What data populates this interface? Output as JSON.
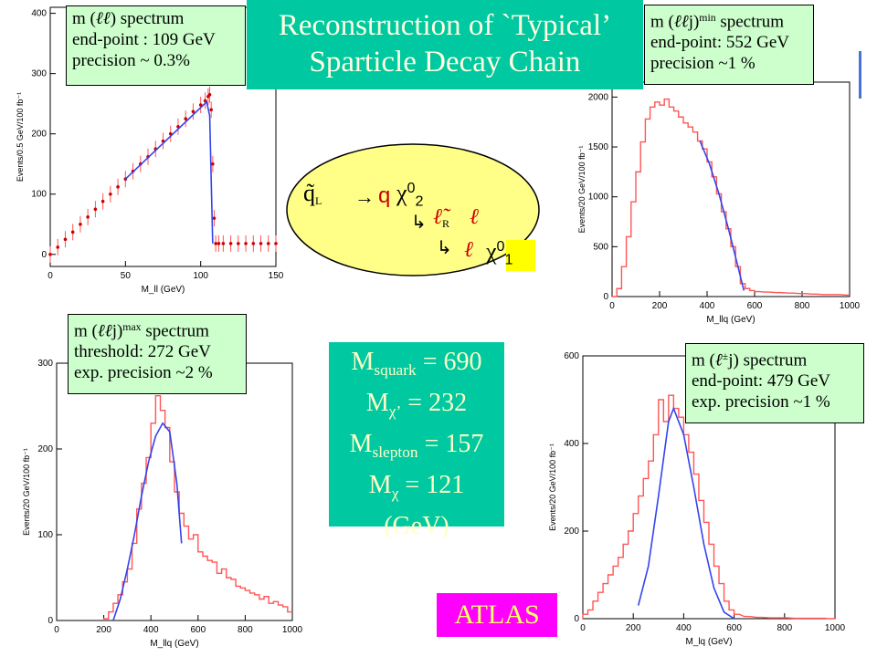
{
  "title": {
    "line1": "Reconstruction of `Typical’",
    "line2": "Sparticle Decay Chain"
  },
  "info_boxes": {
    "ll": {
      "line1_pre": "m (",
      "line1_sym": "ℓℓ",
      "line1_post": ") spectrum",
      "line2": "end-point : 109 GeV",
      "line3": "precision ~ 0.3%"
    },
    "llj_min": {
      "line1_pre": "m (",
      "line1_sym": "ℓℓ",
      "line1_mid": "j)",
      "line1_sup": "min",
      "line1_post": " spectrum",
      "line2": "end-point: 552 GeV",
      "line3": "precision  ~1 %"
    },
    "llj_max": {
      "line1_pre": "m (",
      "line1_sym": "ℓℓ",
      "line1_mid": "j)",
      "line1_sup": "max",
      "line1_post": " spectrum",
      "line2": "threshold: 272 GeV",
      "line3": "exp. precision  ~2 %"
    },
    "lj": {
      "line1_pre": "m (",
      "line1_sym": "ℓ",
      "line1_sup": "±",
      "line1_post": "j) spectrum",
      "line2": "end-point: 479 GeV",
      "line3": "exp. precision  ~1 %"
    }
  },
  "masses": {
    "squark_sym": "M",
    "squark_sub": "squark",
    "squark_val": " = 690",
    "chi2_sym": "M",
    "chi2_sub": "χ’",
    "chi2_val": " = 232",
    "slepton_sym": "M",
    "slepton_sub": "slepton",
    "slepton_val": " = 157",
    "chi1_sym": "M",
    "chi1_sub": "χ",
    "chi1_val": " = 121",
    "unit": "(GeV)"
  },
  "atlas_label": "ATLAS",
  "decay_chain": {
    "squark": "q̃",
    "squark_sub": "L",
    "arrow": "→",
    "quark": "q",
    "chi2": "χ",
    "chi2_sup": "0",
    "chi2_sub": "2",
    "hook": "↳",
    "slepton": "ℓ̃",
    "slepton_sub": "R",
    "lepton1": "ℓ",
    "lepton2": "ℓ",
    "chi1": "χ",
    "chi1_sup": "0",
    "chi1_sub": "1"
  },
  "colors": {
    "hist": "#ff5555",
    "fit": "#3344ee",
    "points": "#cc0000",
    "green_box": "#ccffcc",
    "teal": "#00c8a0",
    "atlas_bg": "#ff00ff"
  },
  "chart_data": [
    {
      "id": "mll",
      "type": "scatter",
      "xlabel": "M_ll (GeV)",
      "ylabel": "Events/0.5 GeV/100 fb⁻¹",
      "xlim": [
        0,
        150
      ],
      "ylim": [
        -20,
        410
      ],
      "xticks": [
        0,
        50,
        100,
        150
      ],
      "yticks": [
        0,
        100,
        200,
        300,
        400
      ],
      "x": [
        0,
        5,
        10,
        15,
        20,
        25,
        30,
        35,
        40,
        45,
        50,
        55,
        60,
        65,
        70,
        75,
        80,
        85,
        90,
        95,
        100,
        103,
        105,
        106,
        107,
        108,
        109,
        110,
        112,
        115,
        120,
        125,
        130,
        135,
        140,
        145,
        150
      ],
      "y": [
        0,
        12,
        25,
        37,
        50,
        62,
        75,
        88,
        100,
        112,
        125,
        138,
        150,
        162,
        175,
        188,
        200,
        212,
        225,
        237,
        248,
        255,
        262,
        265,
        240,
        150,
        60,
        18,
        18,
        18,
        18,
        18,
        18,
        18,
        18,
        18,
        18
      ],
      "fit": {
        "x": [
          50,
          104,
          106,
          108
        ],
        "y": [
          125,
          253,
          230,
          18
        ]
      }
    },
    {
      "id": "mllj_min",
      "type": "line",
      "xlabel": "M_llq (GeV)",
      "ylabel": "Events/20 GeV/100 fb⁻¹",
      "xlim": [
        0,
        1000
      ],
      "ylim": [
        0,
        2150
      ],
      "xticks": [
        0,
        200,
        400,
        600,
        800,
        1000
      ],
      "yticks": [
        0,
        500,
        1000,
        1500,
        2000
      ],
      "x": [
        10,
        30,
        50,
        70,
        90,
        110,
        130,
        150,
        170,
        190,
        210,
        230,
        250,
        270,
        290,
        310,
        330,
        350,
        370,
        390,
        410,
        430,
        450,
        470,
        490,
        510,
        530,
        550,
        570,
        590,
        610,
        650,
        700,
        750,
        800,
        850,
        900,
        950,
        990
      ],
      "y": [
        0,
        80,
        300,
        600,
        950,
        1250,
        1550,
        1780,
        1900,
        1950,
        1920,
        1980,
        1900,
        1860,
        1800,
        1740,
        1700,
        1650,
        1560,
        1480,
        1350,
        1200,
        1030,
        850,
        680,
        500,
        300,
        130,
        80,
        60,
        50,
        45,
        40,
        35,
        30,
        25,
        20,
        20,
        15
      ],
      "fit": {
        "x": [
          370,
          410,
          450,
          490,
          530,
          555
        ],
        "y": [
          1560,
          1330,
          1030,
          680,
          300,
          60
        ]
      }
    },
    {
      "id": "mllj_max",
      "type": "line",
      "xlabel": "M_llq (GeV)",
      "ylabel": "Events/20 GeV/100 fb⁻¹",
      "xlim": [
        0,
        1000
      ],
      "ylim": [
        0,
        300
      ],
      "xticks": [
        0,
        200,
        400,
        600,
        800,
        1000
      ],
      "yticks": [
        0,
        100,
        200,
        300
      ],
      "x": [
        210,
        230,
        250,
        270,
        290,
        310,
        330,
        350,
        370,
        390,
        410,
        430,
        450,
        470,
        490,
        510,
        530,
        550,
        570,
        590,
        610,
        630,
        650,
        670,
        690,
        710,
        730,
        750,
        770,
        790,
        810,
        830,
        850,
        870,
        890,
        910,
        930,
        950,
        970,
        990
      ],
      "y": [
        2,
        10,
        20,
        30,
        45,
        60,
        90,
        130,
        160,
        190,
        230,
        262,
        245,
        225,
        185,
        150,
        125,
        110,
        95,
        100,
        80,
        75,
        70,
        68,
        55,
        60,
        50,
        48,
        40,
        38,
        35,
        32,
        30,
        25,
        28,
        20,
        22,
        18,
        16,
        10
      ],
      "fit": {
        "x": [
          240,
          270,
          300,
          330,
          360,
          390,
          420,
          450,
          480,
          510,
          530
        ],
        "y": [
          0,
          25,
          60,
          100,
          145,
          185,
          215,
          230,
          220,
          160,
          90
        ]
      }
    },
    {
      "id": "mlj",
      "type": "line",
      "xlabel": "M_lq (GeV)",
      "ylabel": "Events/20 GeV/100 fb⁻¹",
      "xlim": [
        0,
        1000
      ],
      "ylim": [
        0,
        600
      ],
      "xticks": [
        0,
        200,
        400,
        600,
        800,
        1000
      ],
      "yticks": [
        0,
        200,
        400,
        600
      ],
      "x": [
        10,
        30,
        50,
        70,
        90,
        110,
        130,
        150,
        170,
        190,
        210,
        230,
        250,
        270,
        290,
        310,
        330,
        350,
        370,
        390,
        410,
        430,
        450,
        470,
        490,
        510,
        530,
        550,
        570,
        590,
        610,
        650,
        700,
        750,
        800,
        850,
        900,
        950,
        990
      ],
      "y": [
        10,
        20,
        40,
        60,
        80,
        100,
        120,
        140,
        170,
        200,
        240,
        280,
        320,
        360,
        420,
        500,
        450,
        510,
        480,
        460,
        420,
        380,
        330,
        270,
        220,
        170,
        120,
        80,
        40,
        20,
        10,
        5,
        3,
        2,
        2,
        1,
        1,
        1,
        0
      ],
      "fit": {
        "x": [
          220,
          260,
          300,
          340,
          360,
          400,
          440,
          480,
          520,
          560,
          600
        ],
        "y": [
          30,
          120,
          280,
          450,
          480,
          420,
          300,
          170,
          70,
          15,
          0
        ]
      }
    }
  ]
}
